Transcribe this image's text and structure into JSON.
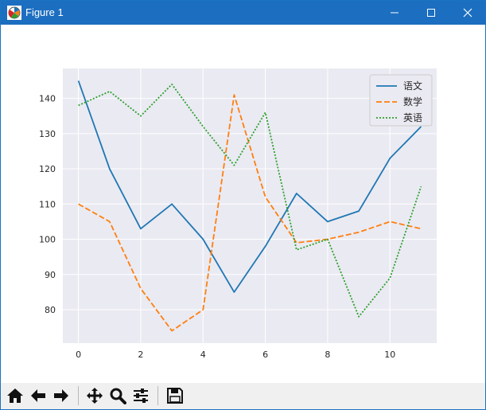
{
  "window": {
    "title": "Figure 1",
    "titlebar_color": "#1c6ec0"
  },
  "window_controls": {
    "minimize_icon": "minimize-icon",
    "maximize_icon": "maximize-icon",
    "close_icon": "close-icon"
  },
  "toolbar": {
    "buttons": [
      {
        "icon": "home-icon",
        "tooltip": "Home"
      },
      {
        "icon": "back-arrow-icon",
        "tooltip": "Back"
      },
      {
        "icon": "forward-arrow-icon",
        "tooltip": "Forward"
      },
      {
        "icon": "pan-move-icon",
        "tooltip": "Pan"
      },
      {
        "icon": "zoom-magnifier-icon",
        "tooltip": "Zoom"
      },
      {
        "icon": "subplots-sliders-icon",
        "tooltip": "Subplots"
      },
      {
        "icon": "save-floppy-icon",
        "tooltip": "Save"
      }
    ]
  },
  "chart_data": {
    "type": "line",
    "x": [
      0,
      1,
      2,
      3,
      4,
      5,
      6,
      7,
      8,
      9,
      10,
      11
    ],
    "series": [
      {
        "name": "语文",
        "values": [
          145,
          120,
          103,
          110,
          100,
          85,
          98,
          113,
          105,
          108,
          123,
          132
        ],
        "color": "#1f77b4",
        "style": "solid"
      },
      {
        "name": "数学",
        "values": [
          110,
          105,
          86,
          74,
          80,
          141,
          112,
          99,
          100,
          102,
          105,
          103
        ],
        "color": "#ff7f0e",
        "style": "dashed"
      },
      {
        "name": "英语",
        "values": [
          138,
          142,
          135,
          144,
          132,
          121,
          136,
          97,
          100,
          78,
          89,
          115
        ],
        "color": "#2ca02c",
        "style": "dotted"
      }
    ],
    "xticks": [
      0,
      2,
      4,
      6,
      8,
      10
    ],
    "yticks": [
      80,
      90,
      100,
      110,
      120,
      130,
      140
    ],
    "xlim": [
      -0.5,
      11.5
    ],
    "ylim": [
      70.5,
      148.5
    ],
    "grid": true,
    "background": "#eaeaf2",
    "legend_position": "top-right"
  }
}
